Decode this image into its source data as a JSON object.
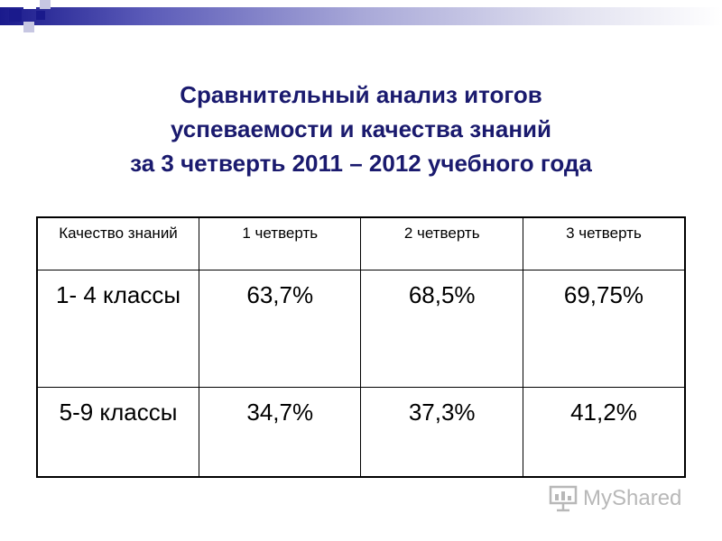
{
  "title": {
    "line1": "Сравнительный анализ итогов",
    "line2": "успеваемости и качества знаний",
    "line3": "за 3 четверть  2011 – 2012 учебного года"
  },
  "table": {
    "headers": [
      "Качество знаний",
      "1 четверть",
      "2 четверть",
      "3 четверть"
    ],
    "rows": [
      {
        "label": "1- 4 классы",
        "values": [
          "63,7%",
          "68,5%",
          "69,75%"
        ]
      },
      {
        "label": "5-9 классы",
        "values": [
          "34,7%",
          "37,3%",
          "41,2%"
        ]
      }
    ]
  },
  "watermark": {
    "text": "MyShared",
    "icon": "myshared-logo-icon"
  },
  "colors": {
    "title": "#1a1a6e",
    "accent": "#1a1a8c"
  }
}
